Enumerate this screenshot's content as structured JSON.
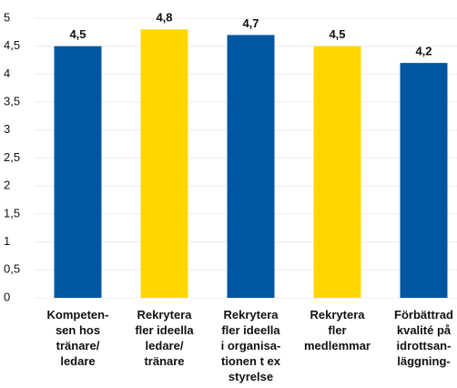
{
  "chart_data": {
    "type": "bar",
    "categories": [
      "Kompeten-\nsen hos\ntränare/\nledare",
      "Rekrytera\nfler ideella\nledare/\ntränare",
      "Rekrytera\nfler ideella\ni organisa-\ntionen t ex\nstyrelse",
      "Rekrytera\nfler\nmedlemmar",
      "Förbättrad\nkvalité på\nidrottsan-\nläggning-"
    ],
    "values": [
      4.5,
      4.8,
      4.7,
      4.5,
      4.2
    ],
    "value_labels": [
      "4,5",
      "4,8",
      "4,7",
      "4,5",
      "4,2"
    ],
    "colors": [
      "#0057a0",
      "#ffd600",
      "#0057a0",
      "#ffd600",
      "#0057a0"
    ],
    "ylim": [
      0,
      5
    ],
    "yticks": [
      0,
      {
        "value": 0.5,
        "label": "0,5"
      },
      1,
      {
        "value": 1.5,
        "label": "1,5"
      },
      2,
      {
        "value": 2.5,
        "label": "2,5"
      },
      3,
      {
        "value": 3.5,
        "label": "3,5"
      },
      4,
      {
        "value": 4.5,
        "label": "4,5"
      },
      5
    ],
    "grid": true
  }
}
